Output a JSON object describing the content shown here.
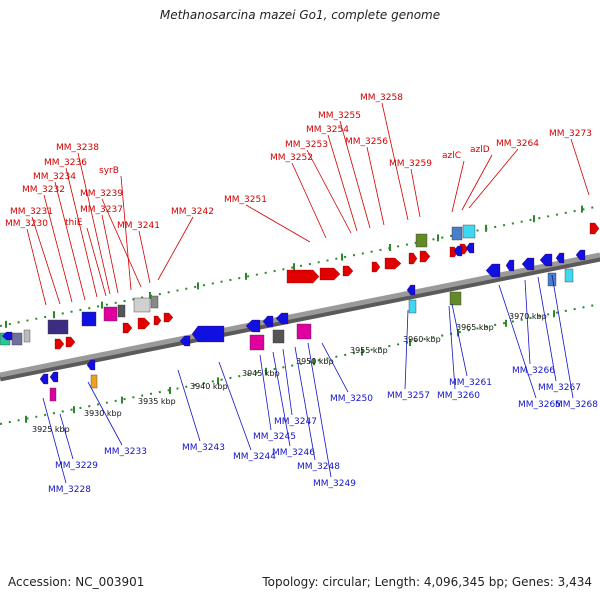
{
  "title": "Methanosarcina mazei Go1, complete genome",
  "footer": {
    "accession": "Accession: NC_003901",
    "summary": "Topology: circular; Length: 4,096,345 bp; Genes: 3,434"
  },
  "colors": {
    "forward_strand": "#e00000",
    "reverse_strand": "#1010e0",
    "forward_label": "#d20000",
    "reverse_label": "#1414c8",
    "backbone": "#8a8a8a",
    "tick_dots": "#2a8a2a"
  },
  "position_ticks": [
    "3925 kbp",
    "3930 kbp",
    "3935 kbp",
    "3940 kbp",
    "3945 kbp",
    "3950 kbp",
    "3955 kbp",
    "3960 kbp",
    "3965 kbp",
    "3970 kbp"
  ],
  "forward_labels": [
    "MM_3230",
    "MM_3231",
    "MM_3232",
    "MM_3234",
    "MM_3236",
    "MM_3238",
    "thiE",
    "MM_3237",
    "syrB",
    "MM_3239",
    "MM_3241",
    "MM_3242",
    "MM_3251",
    "MM_3252",
    "MM_3253",
    "MM_3254",
    "MM_3255",
    "MM_3256",
    "MM_3258",
    "MM_3259",
    "azlC",
    "azlD",
    "MM_3264",
    "MM_3273"
  ],
  "reverse_labels": [
    "MM_3228",
    "MM_3229",
    "MM_3233",
    "MM_3243",
    "MM_3244",
    "MM_3245",
    "MM_3246",
    "MM_3247",
    "MM_3248",
    "MM_3249",
    "MM_3250",
    "MM_3257",
    "MM_3260",
    "MM_3261",
    "MM_3265",
    "MM_3266",
    "MM_3267",
    "MM_3268"
  ]
}
